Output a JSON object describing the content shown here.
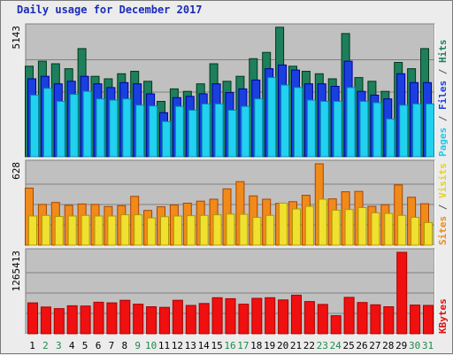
{
  "title": "Daily usage for December 2017",
  "side_labels": {
    "top": [
      {
        "text": "Pages",
        "color": "#22c8e8"
      },
      {
        "text": " / ",
        "color": "#555555"
      },
      {
        "text": "Files",
        "color": "#1a3fe0"
      },
      {
        "text": " / ",
        "color": "#555555"
      },
      {
        "text": "Hits",
        "color": "#1e7f5c"
      }
    ],
    "middle": [
      {
        "text": "Sites",
        "color": "#f08a1a"
      },
      {
        "text": " / ",
        "color": "#555555"
      },
      {
        "text": "Visits",
        "color": "#e8d21a"
      }
    ],
    "bottom": [
      {
        "text": "KBytes",
        "color": "#e01010"
      }
    ]
  },
  "axis_max_labels": {
    "top": "5143",
    "middle": "628",
    "bottom": "1265413"
  },
  "colors": {
    "hits": "#1e7f5c",
    "files": "#1a3fe0",
    "pages": "#22d0f0",
    "sites": "#f08a1a",
    "visits": "#f0e030",
    "kbytes": "#f01010",
    "plot_bg": "#c0c0c0",
    "weekday_label": "#000000",
    "weekend_label": "#1e8a4a"
  },
  "chart_data": [
    {
      "type": "bar",
      "categories": [
        "1",
        "2",
        "3",
        "4",
        "5",
        "6",
        "7",
        "8",
        "9",
        "10",
        "11",
        "12",
        "13",
        "14",
        "15",
        "16",
        "17",
        "18",
        "19",
        "20",
        "21",
        "22",
        "23",
        "24",
        "25",
        "26",
        "27",
        "28",
        "29",
        "30",
        "31"
      ],
      "weekend": [
        false,
        true,
        true,
        false,
        false,
        false,
        false,
        false,
        true,
        true,
        false,
        false,
        false,
        false,
        false,
        true,
        true,
        false,
        false,
        false,
        false,
        false,
        true,
        true,
        false,
        false,
        false,
        false,
        false,
        true,
        true
      ],
      "ymax": 5143,
      "series": [
        {
          "name": "Hits",
          "values": [
            3600,
            3800,
            3700,
            3500,
            4300,
            3200,
            3100,
            3300,
            3400,
            3000,
            2200,
            2700,
            2600,
            2900,
            3700,
            3000,
            3200,
            3900,
            4150,
            5150,
            3600,
            3400,
            3300,
            3100,
            4900,
            3150,
            3000,
            2600,
            3750,
            3500,
            4300
          ]
        },
        {
          "name": "Files",
          "values": [
            3100,
            3200,
            2900,
            3000,
            3200,
            2900,
            2750,
            2950,
            2900,
            2500,
            1750,
            2350,
            2400,
            2500,
            2900,
            2550,
            2700,
            3050,
            3500,
            3650,
            3450,
            2900,
            2900,
            2800,
            3800,
            2600,
            2450,
            2300,
            3300,
            2950,
            2950
          ]
        },
        {
          "name": "Pages",
          "values": [
            2450,
            2720,
            2200,
            2480,
            2600,
            2300,
            2250,
            2300,
            2050,
            2020,
            1400,
            2000,
            1850,
            2100,
            2100,
            1850,
            2000,
            2300,
            3150,
            2850,
            2750,
            2250,
            2200,
            2200,
            2750,
            2200,
            2150,
            1500,
            2050,
            2100,
            2100
          ]
        }
      ]
    },
    {
      "type": "bar",
      "categories": [
        "1",
        "2",
        "3",
        "4",
        "5",
        "6",
        "7",
        "8",
        "9",
        "10",
        "11",
        "12",
        "13",
        "14",
        "15",
        "16",
        "17",
        "18",
        "19",
        "20",
        "21",
        "22",
        "23",
        "24",
        "25",
        "26",
        "27",
        "28",
        "29",
        "30",
        "31"
      ],
      "ymax": 628,
      "series": [
        {
          "name": "Sites",
          "values": [
            440,
            315,
            330,
            308,
            318,
            315,
            298,
            305,
            377,
            268,
            296,
            310,
            324,
            340,
            355,
            435,
            490,
            380,
            355,
            323,
            336,
            385,
            628,
            358,
            412,
            415,
            300,
            312,
            465,
            370,
            320
          ]
        },
        {
          "name": "Visits",
          "values": [
            225,
            230,
            222,
            225,
            230,
            225,
            225,
            235,
            235,
            210,
            220,
            225,
            228,
            230,
            235,
            240,
            238,
            215,
            230,
            325,
            280,
            300,
            355,
            270,
            275,
            290,
            250,
            245,
            230,
            215,
            175
          ]
        }
      ]
    },
    {
      "type": "bar",
      "categories": [
        "1",
        "2",
        "3",
        "4",
        "5",
        "6",
        "7",
        "8",
        "9",
        "10",
        "11",
        "12",
        "13",
        "14",
        "15",
        "16",
        "17",
        "18",
        "19",
        "20",
        "21",
        "22",
        "23",
        "24",
        "25",
        "26",
        "27",
        "28",
        "29",
        "30",
        "31"
      ],
      "ymax": 1265413,
      "series": [
        {
          "name": "KBytes",
          "values": [
            480000,
            415000,
            390000,
            435000,
            430000,
            490000,
            480000,
            520000,
            460000,
            420000,
            410000,
            520000,
            440000,
            470000,
            560000,
            545000,
            460000,
            550000,
            560000,
            525000,
            600000,
            500000,
            455000,
            280000,
            565000,
            485000,
            450000,
            420000,
            1265413,
            445000,
            440000
          ]
        }
      ]
    }
  ]
}
